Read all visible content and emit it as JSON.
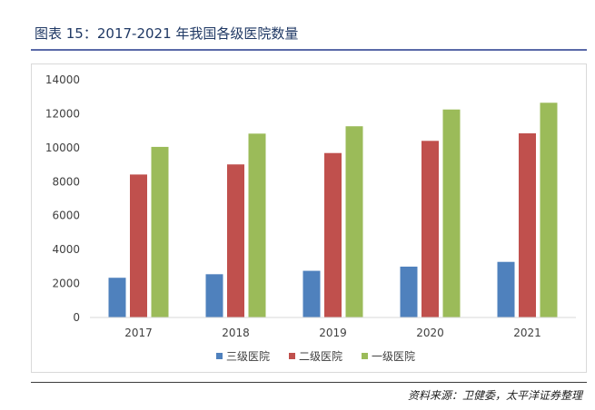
{
  "figure": {
    "title": "图表 15：2017-2021 年我国各级医院数量",
    "source": "资料来源：卫健委，太平洋证券整理"
  },
  "chart_data": {
    "type": "bar",
    "title": "",
    "xlabel": "",
    "ylabel": "",
    "categories": [
      "2017",
      "2018",
      "2019",
      "2020",
      "2021"
    ],
    "series": [
      {
        "name": "三级医院",
        "color": "#4f81bd",
        "values": [
          2340,
          2548,
          2749,
          2996,
          3275
        ]
      },
      {
        "name": "二级医院",
        "color": "#c0504d",
        "values": [
          8422,
          9017,
          9687,
          10404,
          10848
        ]
      },
      {
        "name": "一级医院",
        "color": "#9bbb59",
        "values": [
          10050,
          10831,
          11264,
          12252,
          12649
        ]
      }
    ],
    "ylim": [
      0,
      14000
    ],
    "yticks": [
      0,
      2000,
      4000,
      6000,
      8000,
      10000,
      12000,
      14000
    ],
    "grid": false,
    "legend": "bottom"
  }
}
